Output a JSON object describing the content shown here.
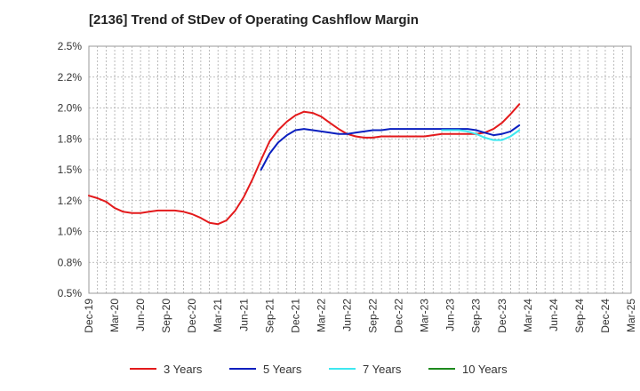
{
  "chart_data": {
    "type": "line",
    "title": "[2136]  Trend of StDev of Operating Cashflow Margin",
    "xlabel": "",
    "ylabel": "",
    "x_ticks": [
      "Dec-19",
      "Mar-20",
      "Jun-20",
      "Sep-20",
      "Dec-20",
      "Mar-21",
      "Jun-21",
      "Sep-21",
      "Dec-21",
      "Mar-22",
      "Jun-22",
      "Sep-22",
      "Dec-22",
      "Mar-23",
      "Jun-23",
      "Sep-23",
      "Dec-23",
      "Mar-24",
      "Jun-24",
      "Sep-24",
      "Dec-24",
      "Mar-25"
    ],
    "y_ticks": [
      "0.5%",
      "0.8%",
      "1.0%",
      "1.2%",
      "1.5%",
      "1.8%",
      "2.0%",
      "2.2%",
      "2.5%"
    ],
    "ylim": [
      0.5,
      2.5
    ],
    "grid": true,
    "legend_position": "bottom",
    "series": [
      {
        "name": "3 Years",
        "color": "#e31a1c",
        "points": [
          [
            0,
            1.29
          ],
          [
            0.33,
            1.27
          ],
          [
            0.67,
            1.24
          ],
          [
            1,
            1.19
          ],
          [
            1.33,
            1.16
          ],
          [
            1.67,
            1.15
          ],
          [
            2,
            1.15
          ],
          [
            2.33,
            1.16
          ],
          [
            2.67,
            1.17
          ],
          [
            3,
            1.17
          ],
          [
            3.33,
            1.17
          ],
          [
            3.67,
            1.16
          ],
          [
            4,
            1.14
          ],
          [
            4.33,
            1.11
          ],
          [
            4.67,
            1.07
          ],
          [
            5,
            1.06
          ],
          [
            5.33,
            1.09
          ],
          [
            5.67,
            1.17
          ],
          [
            6,
            1.28
          ],
          [
            6.33,
            1.42
          ],
          [
            6.67,
            1.58
          ],
          [
            7,
            1.73
          ],
          [
            7.33,
            1.82
          ],
          [
            7.67,
            1.89
          ],
          [
            8,
            1.94
          ],
          [
            8.33,
            1.97
          ],
          [
            8.67,
            1.96
          ],
          [
            9,
            1.93
          ],
          [
            9.33,
            1.88
          ],
          [
            9.67,
            1.83
          ],
          [
            10,
            1.79
          ],
          [
            10.33,
            1.77
          ],
          [
            10.67,
            1.76
          ],
          [
            11,
            1.76
          ],
          [
            11.33,
            1.77
          ],
          [
            11.67,
            1.77
          ],
          [
            12,
            1.77
          ],
          [
            12.33,
            1.77
          ],
          [
            12.67,
            1.77
          ],
          [
            13,
            1.77
          ],
          [
            13.33,
            1.78
          ],
          [
            13.67,
            1.79
          ],
          [
            14,
            1.79
          ],
          [
            14.33,
            1.79
          ],
          [
            14.67,
            1.79
          ],
          [
            15,
            1.79
          ],
          [
            15.33,
            1.8
          ],
          [
            15.67,
            1.83
          ],
          [
            16,
            1.88
          ],
          [
            16.33,
            1.95
          ],
          [
            16.67,
            2.03
          ]
        ]
      },
      {
        "name": "5 Years",
        "color": "#0a1fbf",
        "points": [
          [
            6.67,
            1.5
          ],
          [
            7,
            1.63
          ],
          [
            7.33,
            1.72
          ],
          [
            7.67,
            1.78
          ],
          [
            8,
            1.82
          ],
          [
            8.33,
            1.83
          ],
          [
            8.67,
            1.82
          ],
          [
            9,
            1.81
          ],
          [
            9.33,
            1.8
          ],
          [
            9.67,
            1.79
          ],
          [
            10,
            1.79
          ],
          [
            10.33,
            1.8
          ],
          [
            10.67,
            1.81
          ],
          [
            11,
            1.82
          ],
          [
            11.33,
            1.82
          ],
          [
            11.67,
            1.83
          ],
          [
            12,
            1.83
          ],
          [
            12.33,
            1.83
          ],
          [
            12.67,
            1.83
          ],
          [
            13,
            1.83
          ],
          [
            13.33,
            1.83
          ],
          [
            13.67,
            1.83
          ],
          [
            14,
            1.83
          ],
          [
            14.33,
            1.83
          ],
          [
            14.67,
            1.83
          ],
          [
            15,
            1.82
          ],
          [
            15.33,
            1.8
          ],
          [
            15.67,
            1.78
          ],
          [
            16,
            1.79
          ],
          [
            16.33,
            1.81
          ],
          [
            16.67,
            1.86
          ]
        ]
      },
      {
        "name": "7 Years",
        "color": "#3ee8f0",
        "points": [
          [
            13.67,
            1.82
          ],
          [
            14,
            1.82
          ],
          [
            14.33,
            1.82
          ],
          [
            14.67,
            1.81
          ],
          [
            15,
            1.79
          ],
          [
            15.33,
            1.76
          ],
          [
            15.67,
            1.74
          ],
          [
            16,
            1.74
          ],
          [
            16.33,
            1.77
          ],
          [
            16.67,
            1.82
          ]
        ]
      },
      {
        "name": "10 Years",
        "color": "#1e8a1e",
        "points": []
      }
    ]
  }
}
